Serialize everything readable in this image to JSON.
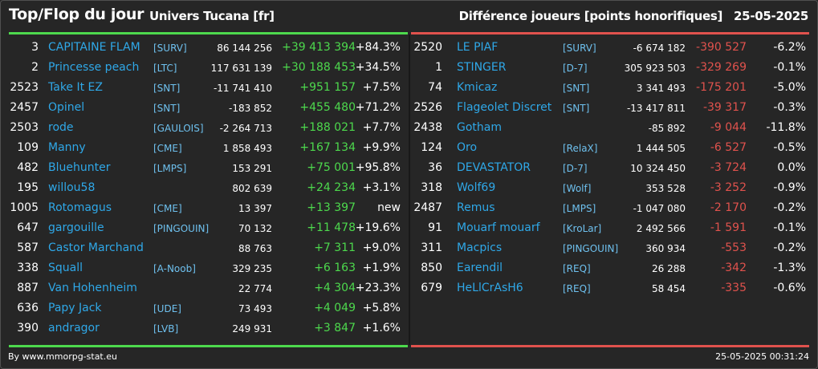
{
  "header": {
    "title": "Top/Flop du jour",
    "universe": "Univers Tucana [fr]",
    "metric": "Différence joueurs [points honorifiques]",
    "date": "25-05-2025"
  },
  "colors": {
    "positive": "#4dd94d",
    "negative": "#e0524d",
    "name": "#2fa8e8"
  },
  "top": [
    {
      "rank": "3",
      "name": "CAPITAINE FLAM",
      "tag": "[SURV]",
      "points": "86 144 256",
      "diff": "+39 413 394",
      "pct": "+84.3%"
    },
    {
      "rank": "2",
      "name": "Princesse peach",
      "tag": "[LTC]",
      "points": "117 631 139",
      "diff": "+30 188 453",
      "pct": "+34.5%"
    },
    {
      "rank": "2523",
      "name": "Take It EZ",
      "tag": "[SNT]",
      "points": "-11 741 410",
      "diff": "+951 157",
      "pct": "+7.5%"
    },
    {
      "rank": "2457",
      "name": "Opinel",
      "tag": "[SNT]",
      "points": "-183 852",
      "diff": "+455 480",
      "pct": "+71.2%"
    },
    {
      "rank": "2503",
      "name": "rode",
      "tag": "[GAULOIS]",
      "points": "-2 264 713",
      "diff": "+188 021",
      "pct": "+7.7%"
    },
    {
      "rank": "109",
      "name": "Manny",
      "tag": "[CME]",
      "points": "1 858 493",
      "diff": "+167 134",
      "pct": "+9.9%"
    },
    {
      "rank": "482",
      "name": "Bluehunter",
      "tag": "[LMPS]",
      "points": "153 291",
      "diff": "+75 001",
      "pct": "+95.8%"
    },
    {
      "rank": "195",
      "name": "willou58",
      "tag": "",
      "points": "802 639",
      "diff": "+24 234",
      "pct": "+3.1%"
    },
    {
      "rank": "1005",
      "name": "Rotomagus",
      "tag": "[CME]",
      "points": "13 397",
      "diff": "+13 397",
      "pct": "new"
    },
    {
      "rank": "647",
      "name": "gargouille",
      "tag": "[PINGOUIN]",
      "points": "70 132",
      "diff": "+11 478",
      "pct": "+19.6%"
    },
    {
      "rank": "587",
      "name": "Castor Marchand",
      "tag": "",
      "points": "88 763",
      "diff": "+7 311",
      "pct": "+9.0%"
    },
    {
      "rank": "338",
      "name": "Squall",
      "tag": "[A-Noob]",
      "points": "329 235",
      "diff": "+6 163",
      "pct": "+1.9%"
    },
    {
      "rank": "887",
      "name": "Van Hohenheim",
      "tag": "",
      "points": "22 774",
      "diff": "+4 304",
      "pct": "+23.3%"
    },
    {
      "rank": "636",
      "name": "Papy Jack",
      "tag": "[UDE]",
      "points": "73 493",
      "diff": "+4 049",
      "pct": "+5.8%"
    },
    {
      "rank": "390",
      "name": "andragor",
      "tag": "[LVB]",
      "points": "249 931",
      "diff": "+3 847",
      "pct": "+1.6%"
    }
  ],
  "flop": [
    {
      "rank": "2520",
      "name": "LE PIAF",
      "tag": "[SURV]",
      "points": "-6 674 182",
      "diff": "-390 527",
      "pct": "-6.2%"
    },
    {
      "rank": "1",
      "name": "STINGER",
      "tag": "[D-7]",
      "points": "305 923 503",
      "diff": "-329 269",
      "pct": "-0.1%"
    },
    {
      "rank": "74",
      "name": "Kmicaz",
      "tag": "[SNT]",
      "points": "3 341 493",
      "diff": "-175 201",
      "pct": "-5.0%"
    },
    {
      "rank": "2526",
      "name": "Flageolet Discret",
      "tag": "[SNT]",
      "points": "-13 417 811",
      "diff": "-39 317",
      "pct": "-0.3%"
    },
    {
      "rank": "2438",
      "name": "Gotham",
      "tag": "",
      "points": "-85 892",
      "diff": "-9 044",
      "pct": "-11.8%"
    },
    {
      "rank": "124",
      "name": "Oro",
      "tag": "[RelaX]",
      "points": "1 444 505",
      "diff": "-6 527",
      "pct": "-0.5%"
    },
    {
      "rank": "36",
      "name": "DEVASTATOR",
      "tag": "[D-7]",
      "points": "10 324 450",
      "diff": "-3 724",
      "pct": "0.0%"
    },
    {
      "rank": "318",
      "name": "Wolf69",
      "tag": "[Wolf]",
      "points": "353 528",
      "diff": "-3 252",
      "pct": "-0.9%"
    },
    {
      "rank": "2487",
      "name": "Remus",
      "tag": "[LMPS]",
      "points": "-1 047 080",
      "diff": "-2 170",
      "pct": "-0.2%"
    },
    {
      "rank": "91",
      "name": "Mouarf mouarf",
      "tag": "[KroLar]",
      "points": "2 492 566",
      "diff": "-1 591",
      "pct": "-0.1%"
    },
    {
      "rank": "311",
      "name": "Macpics",
      "tag": "[PINGOUIN]",
      "points": "360 934",
      "diff": "-553",
      "pct": "-0.2%"
    },
    {
      "rank": "850",
      "name": "Earendil",
      "tag": "[REQ]",
      "points": "26 288",
      "diff": "-342",
      "pct": "-1.3%"
    },
    {
      "rank": "679",
      "name": "HeLlCrAsH6",
      "tag": "[REQ]",
      "points": "58 454",
      "diff": "-335",
      "pct": "-0.6%"
    }
  ],
  "footer": {
    "source": "By www.mmorpg-stat.eu",
    "timestamp": "25-05-2025 00:31:24"
  }
}
